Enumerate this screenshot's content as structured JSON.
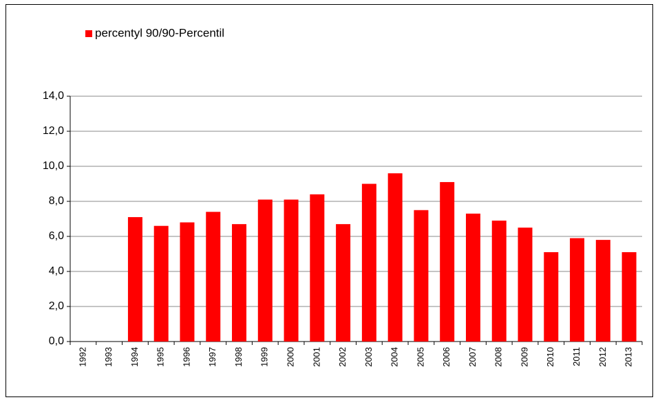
{
  "chart_data": {
    "type": "bar",
    "categories": [
      "1992",
      "1993",
      "1994",
      "1995",
      "1996",
      "1997",
      "1998",
      "1999",
      "2000",
      "2001",
      "2002",
      "2003",
      "2004",
      "2005",
      "2006",
      "2007",
      "2008",
      "2009",
      "2010",
      "2011",
      "2012",
      "2013"
    ],
    "series": [
      {
        "name": "percentyl 90/90-Percentil",
        "color": "#ff0000",
        "values": [
          null,
          null,
          7.1,
          6.6,
          6.8,
          7.4,
          6.7,
          8.1,
          8.1,
          8.4,
          6.7,
          9.0,
          9.6,
          7.5,
          9.1,
          7.3,
          6.9,
          6.5,
          5.1,
          5.9,
          5.8,
          5.1
        ]
      }
    ],
    "ylim": [
      0,
      14
    ],
    "yticks": [
      {
        "value": 0,
        "label": "0,0"
      },
      {
        "value": 2,
        "label": "2,0"
      },
      {
        "value": 4,
        "label": "4,0"
      },
      {
        "value": 6,
        "label": "6,0"
      },
      {
        "value": 8,
        "label": "8,0"
      },
      {
        "value": 10,
        "label": "10,0"
      },
      {
        "value": 12,
        "label": "12,0"
      },
      {
        "value": 14,
        "label": "14,0"
      }
    ],
    "grid": true,
    "legend": "top-left"
  }
}
